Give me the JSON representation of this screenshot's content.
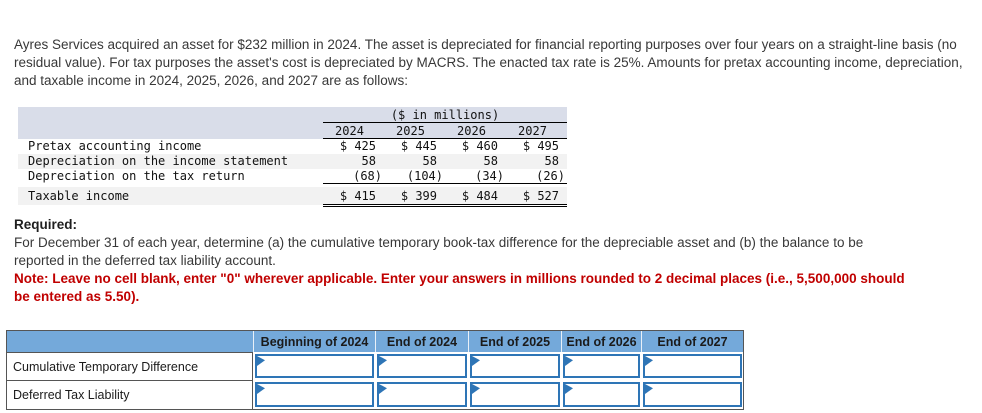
{
  "intro": "Ayres Services acquired an asset for $232 million in 2024. The asset is depreciated for financial reporting purposes over four years on a straight-line basis (no residual value). For tax purposes the asset's cost is depreciated by MACRS. The enacted tax rate is 25%. Amounts for pretax accounting income, depreciation, and taxable income in 2024, 2025, 2026, and 2027 are as follows:",
  "table1": {
    "units_header": "($ in millions)",
    "years": [
      "2024",
      "2025",
      "2026",
      "2027"
    ],
    "rows": [
      {
        "label": "Pretax accounting income",
        "values": [
          "$ 425",
          "$ 445",
          "$ 460",
          "$ 495"
        ]
      },
      {
        "label": "Depreciation on the income statement",
        "values": [
          "58",
          "58",
          "58",
          "58"
        ]
      },
      {
        "label": "Depreciation on the tax return",
        "values": [
          "(68)",
          "(104)",
          "(34)",
          "(26)"
        ]
      },
      {
        "label": "Taxable income",
        "values": [
          "$ 415",
          "$ 399",
          "$ 484",
          "$ 527"
        ]
      }
    ]
  },
  "required": {
    "heading": "Required:",
    "body": "For December 31 of each year, determine (a) the cumulative temporary book-tax difference for the depreciable asset and (b) the balance to be reported in the deferred tax liability account.",
    "note": "Note: Leave no cell blank, enter \"0\" wherever applicable. Enter your answers in millions rounded to 2 decimal places (i.e., 5,500,000 should be entered as 5.50)."
  },
  "answer_table": {
    "columns": [
      "Beginning of 2024",
      "End of 2024",
      "End of 2025",
      "End of 2026",
      "End of 2027"
    ],
    "rows": [
      {
        "label": "Cumulative Temporary Difference",
        "values": [
          "",
          "",
          "",
          "",
          ""
        ]
      },
      {
        "label": "Deferred Tax Liability",
        "values": [
          "",
          "",
          "",
          "",
          ""
        ]
      }
    ]
  },
  "colors": {
    "answer_header_blue": "#74a9da",
    "input_border_blue": "#2e75b6",
    "note_red": "#c00000",
    "income_header_bg": "#d9dde9",
    "alt_row_bg": "#f2f2f2"
  }
}
